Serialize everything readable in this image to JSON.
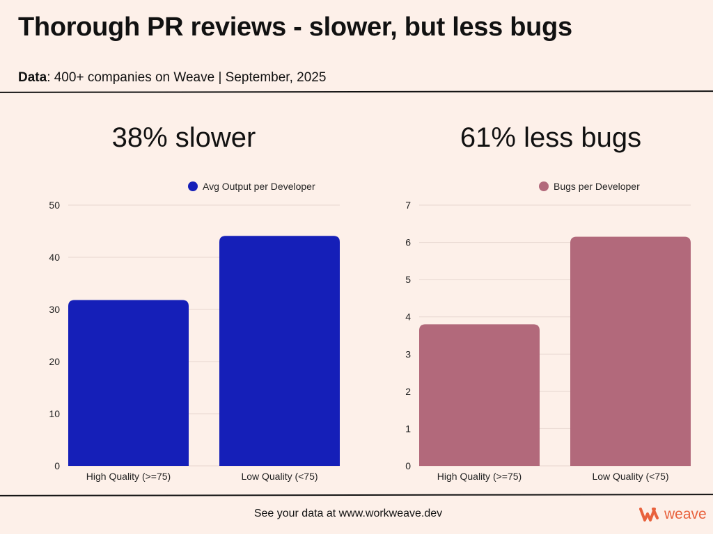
{
  "header": {
    "title": "Thorough PR reviews - slower, but less bugs",
    "data_label": "Data",
    "data_text": ": 400+ companies on Weave | September, 2025"
  },
  "panels": [
    {
      "heading": "38% slower"
    },
    {
      "heading": "61% less bugs"
    }
  ],
  "chart_data": [
    {
      "type": "bar",
      "categories": [
        "High Quality (>=75)",
        "Low Quality (<75)"
      ],
      "series": [
        {
          "name": "Avg Output per Developer",
          "values": [
            31.8,
            44.1
          ],
          "color": "#151fb8"
        }
      ],
      "ylim": [
        0,
        50
      ],
      "yticks": [
        0,
        10,
        20,
        30,
        40,
        50
      ],
      "legend": "top-center",
      "grid": true
    },
    {
      "type": "bar",
      "categories": [
        "High Quality (>=75)",
        "Low Quality (<75)"
      ],
      "series": [
        {
          "name": "Bugs per Developer",
          "values": [
            3.8,
            6.15
          ],
          "color": "#b2697b"
        }
      ],
      "ylim": [
        0,
        7
      ],
      "yticks": [
        0,
        1,
        2,
        3,
        4,
        5,
        6,
        7
      ],
      "legend": "top-center",
      "grid": true
    }
  ],
  "footer": {
    "text": "See your data at www.workweave.dev",
    "brand": "weave",
    "brand_color": "#e8613c"
  }
}
